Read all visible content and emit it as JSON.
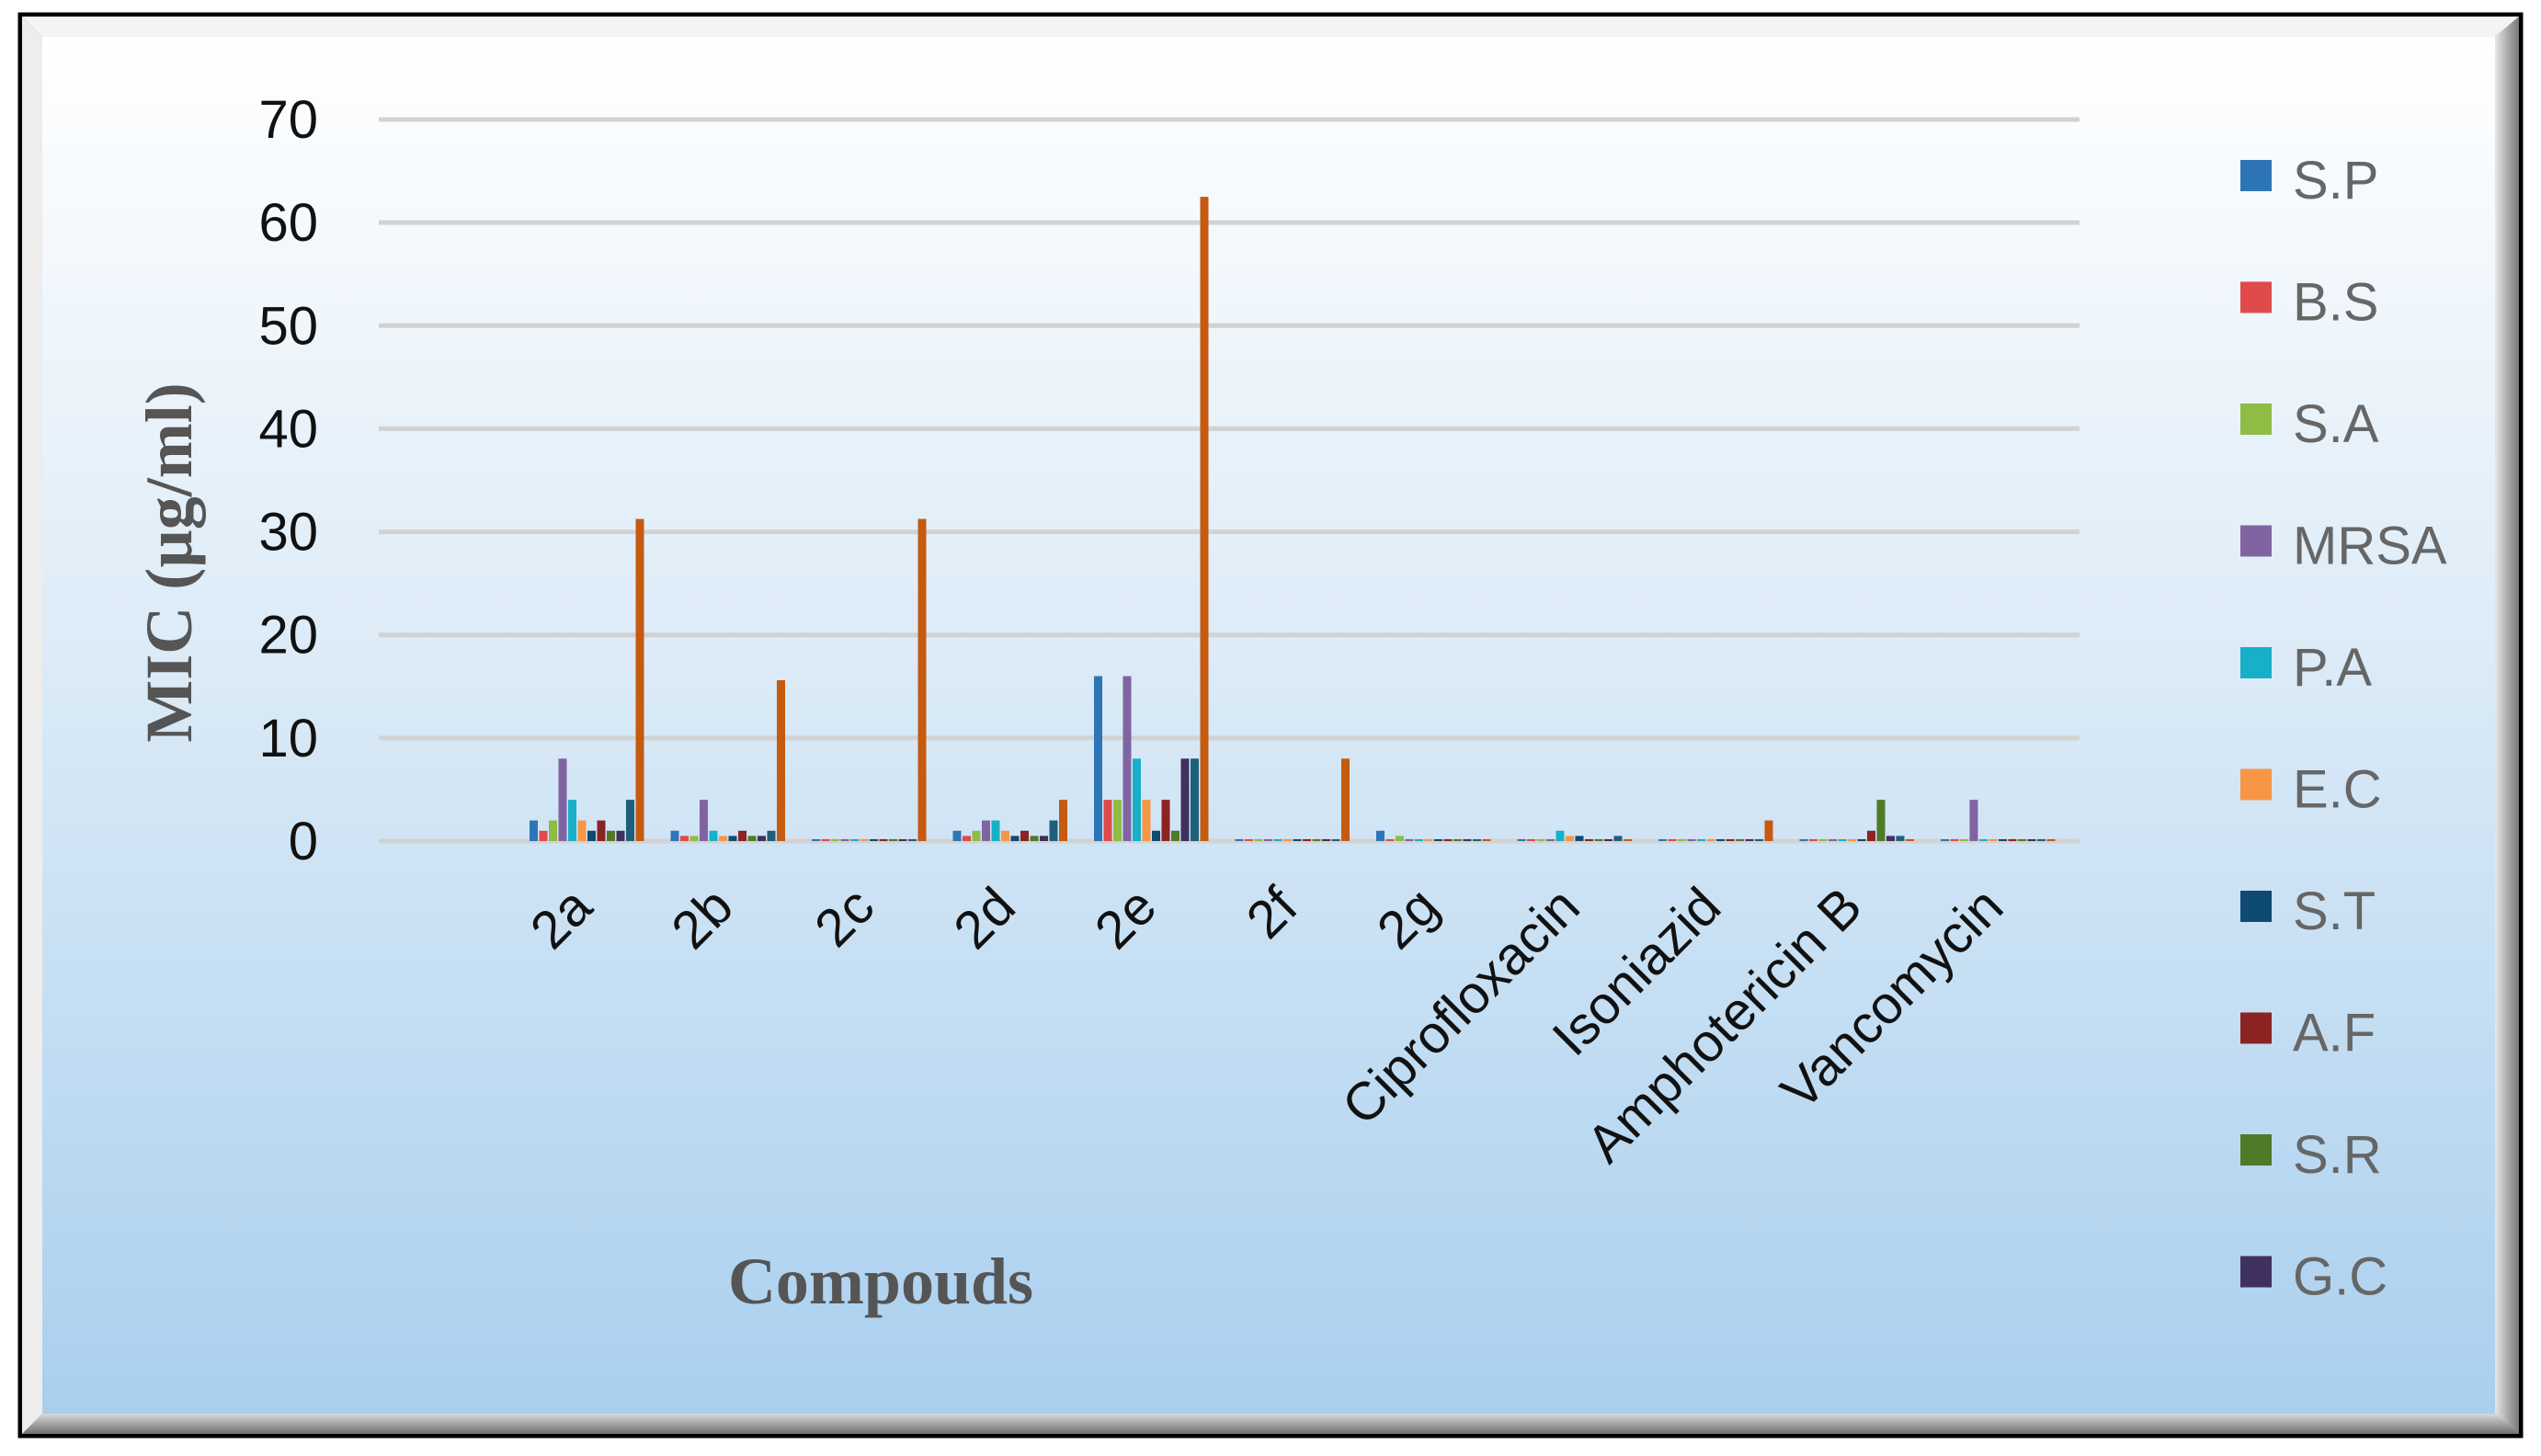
{
  "chart_data": {
    "type": "bar",
    "title": "",
    "xlabel": "Compouds",
    "ylabel": "MIC (µg/ml)",
    "ylim": [
      0,
      70
    ],
    "yticks": [
      0,
      10,
      20,
      30,
      40,
      50,
      60,
      70
    ],
    "grid": true,
    "legend_position": "right",
    "categories": [
      "2a",
      "2b",
      "2c",
      "2d",
      "2e",
      "2f",
      "2g",
      "Ciprofloxacin",
      "Isoniazid",
      "Amphotericin B",
      "Vancomycin"
    ],
    "series": [
      {
        "name": "S.P",
        "color": "#2E75B6",
        "values": [
          2,
          1,
          0,
          1,
          16,
          0,
          1,
          0,
          0,
          0,
          0
        ]
      },
      {
        "name": "B.S",
        "color": "#E04A4A",
        "values": [
          1,
          0.5,
          0,
          0.5,
          4,
          0,
          0,
          0,
          0,
          0,
          0
        ]
      },
      {
        "name": "S.A",
        "color": "#8FBC45",
        "values": [
          2,
          0.5,
          0,
          1,
          4,
          0,
          0.5,
          0,
          0,
          0,
          0
        ]
      },
      {
        "name": "MRSA",
        "color": "#8064A2",
        "values": [
          8,
          4,
          0,
          2,
          16,
          0,
          0,
          0,
          0,
          0,
          4
        ]
      },
      {
        "name": "P.A",
        "color": "#17B0C8",
        "values": [
          4,
          1,
          0,
          2,
          8,
          0,
          0,
          1,
          0,
          0,
          0
        ]
      },
      {
        "name": "E.C",
        "color": "#F79646",
        "values": [
          2,
          0.5,
          0,
          1,
          4,
          0,
          0,
          0.5,
          0,
          0,
          0
        ]
      },
      {
        "name": "S.T",
        "color": "#0E4A72",
        "values": [
          1,
          0.5,
          0,
          0.5,
          1,
          0,
          0,
          0.5,
          0,
          0,
          0
        ]
      },
      {
        "name": "A.F",
        "color": "#8B2323",
        "values": [
          2,
          1,
          0,
          1,
          4,
          0,
          0,
          0,
          0,
          1,
          0
        ]
      },
      {
        "name": "S.R",
        "color": "#4F7A28",
        "values": [
          1,
          0.5,
          0,
          0.5,
          1,
          0,
          0,
          0,
          0,
          4,
          0
        ]
      },
      {
        "name": "G.C",
        "color": "#403060",
        "values": [
          1,
          0.5,
          0,
          0.5,
          8,
          0,
          0,
          0,
          0,
          0.5,
          0
        ]
      },
      {
        "name": "",
        "color": "#1F5F7A",
        "values": [
          4,
          1,
          0,
          2,
          8,
          0,
          0,
          0.5,
          0,
          0.5,
          0
        ]
      },
      {
        "name": "",
        "color": "#C55A11",
        "values": [
          31.25,
          15.6,
          31.25,
          4,
          62.5,
          8,
          0,
          0,
          2,
          0,
          0
        ]
      }
    ]
  }
}
